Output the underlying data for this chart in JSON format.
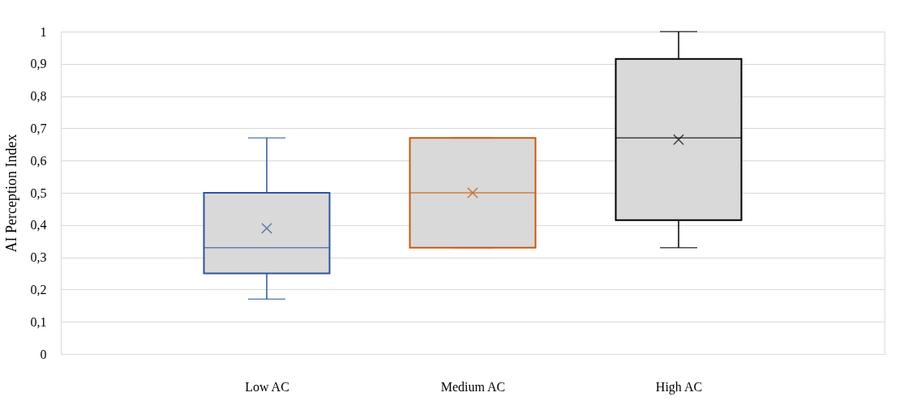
{
  "chart_data": {
    "type": "box",
    "ylabel": "AI Perception Index",
    "categories": [
      "Low AC",
      "Medium AC",
      "High AC"
    ],
    "colors": [
      "#2f5597",
      "#c55a11",
      "#000000"
    ],
    "boxes": [
      {
        "low": 0.17,
        "q1": 0.25,
        "median": 0.33,
        "q3": 0.5,
        "high": 0.67,
        "mean": 0.39
      },
      {
        "low": 0.33,
        "q1": 0.33,
        "median": 0.5,
        "q3": 0.67,
        "high": 0.67,
        "mean": 0.5
      },
      {
        "low": 0.33,
        "q1": 0.415,
        "median": 0.67,
        "q3": 0.915,
        "high": 1,
        "mean": 0.665
      }
    ],
    "ylim": [
      0,
      1
    ],
    "yticks": [
      {
        "value": 0,
        "label": "0"
      },
      {
        "value": 0.1,
        "label": "0,1"
      },
      {
        "value": 0.2,
        "label": "0,2"
      },
      {
        "value": 0.3,
        "label": "0,3"
      },
      {
        "value": 0.4,
        "label": "0,4"
      },
      {
        "value": 0.5,
        "label": "0,5"
      },
      {
        "value": 0.6,
        "label": "0,6"
      },
      {
        "value": 0.7,
        "label": "0,7"
      },
      {
        "value": 0.8,
        "label": "0,8"
      },
      {
        "value": 0.9,
        "label": "0,9"
      },
      {
        "value": 1,
        "label": "1"
      }
    ],
    "grid": "y",
    "legend": false
  }
}
